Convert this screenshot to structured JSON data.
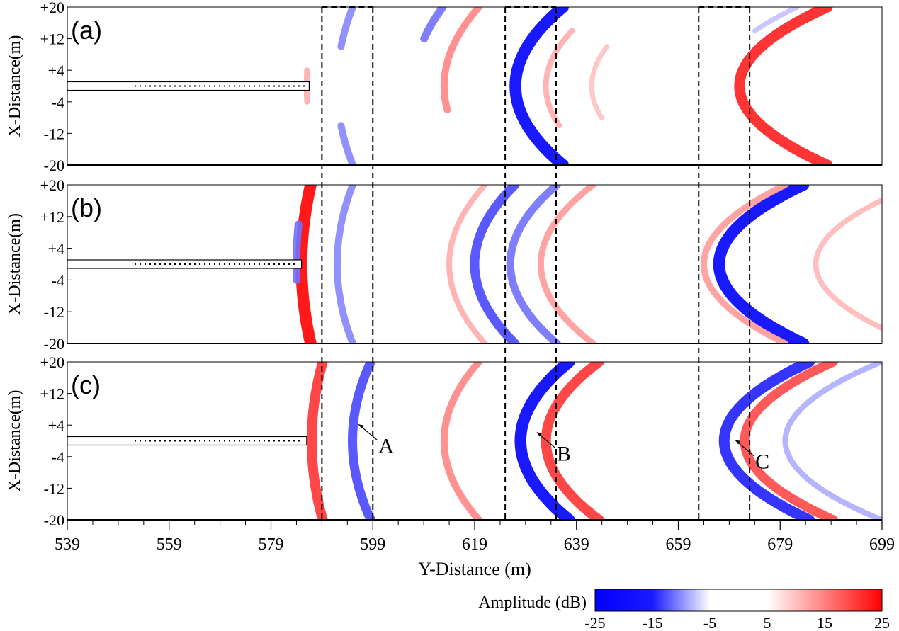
{
  "chart_data": {
    "type": "heatmap",
    "title": "",
    "xlabel": "Y-Distance (m)",
    "ylabel": "X-Distance(m)",
    "xlim": [
      539,
      699
    ],
    "ylim": [
      -20,
      20
    ],
    "x_ticks": [
      539,
      559,
      579,
      599,
      619,
      639,
      659,
      679,
      699
    ],
    "x_tick_labels": [
      "539",
      "559",
      "579",
      "599",
      "619",
      "639",
      "659",
      "679",
      "699"
    ],
    "y_ticks": [
      20,
      12,
      4,
      -4,
      -12,
      -20
    ],
    "y_tick_labels": [
      "+20",
      "+12",
      "+4",
      "-4",
      "-12",
      "-20"
    ],
    "colorbar": {
      "label": "Amplitude (dB)",
      "range": [
        -25,
        25
      ],
      "ticks": [
        "-25",
        "-15",
        "-5",
        "5",
        "15",
        "25"
      ],
      "low_color": "#0000ff",
      "mid_color": "#ffffff",
      "high_color": "#ff0000"
    },
    "dashed_regions": [
      {
        "x": [
          589,
          599
        ]
      },
      {
        "x": [
          625,
          635
        ]
      },
      {
        "x": [
          663,
          673
        ]
      }
    ],
    "panels": [
      {
        "label": "(a)",
        "borehole": {
          "x_end": 586.5,
          "y": 0
        },
        "arcs": [
          {
            "y0": 592,
            "amp": -12,
            "x_range": [
              10,
              20
            ]
          },
          {
            "y0": 592,
            "amp": -12,
            "x_range": [
              -20,
              -10
            ]
          },
          {
            "y0": 586,
            "amp": 8,
            "x_range": [
              -4,
              4
            ]
          },
          {
            "y0": 607,
            "amp": -14,
            "x_range": [
              12,
              20
            ]
          },
          {
            "y0": 613,
            "amp": 12,
            "x_range": [
              -6,
              20
            ]
          },
          {
            "y0": 627,
            "amp": -25,
            "x_range": [
              -20,
              20
            ]
          },
          {
            "y0": 633,
            "amp": 8,
            "x_range": [
              -10,
              14
            ]
          },
          {
            "y0": 642,
            "amp": 6,
            "x_range": [
              -8,
              10
            ]
          },
          {
            "y0": 671,
            "amp": 22,
            "x_range": [
              -20,
              20
            ]
          },
          {
            "y0": 666,
            "amp": -6,
            "x_range": [
              14,
              20
            ]
          }
        ]
      },
      {
        "label": "(b)",
        "borehole": {
          "x_end": 585,
          "y": 0
        },
        "arcs": [
          {
            "y0": 585,
            "amp": 25,
            "x_range": [
              -20,
              20
            ]
          },
          {
            "y0": 584,
            "amp": -14,
            "x_range": [
              -4,
              10
            ]
          },
          {
            "y0": 592,
            "amp": -12,
            "x_range": [
              -20,
              20
            ]
          },
          {
            "y0": 619,
            "amp": -18,
            "x_range": [
              -20,
              20
            ]
          },
          {
            "y0": 614,
            "amp": 8,
            "x_range": [
              -20,
              20
            ]
          },
          {
            "y0": 626,
            "amp": -14,
            "x_range": [
              -20,
              20
            ]
          },
          {
            "y0": 632,
            "amp": 10,
            "x_range": [
              -20,
              20
            ]
          },
          {
            "y0": 667,
            "amp": -25,
            "x_range": [
              -20,
              20
            ]
          },
          {
            "y0": 664,
            "amp": 10,
            "x_range": [
              -20,
              20
            ]
          },
          {
            "y0": 686,
            "amp": 7,
            "x_range": [
              -20,
              20
            ]
          }
        ]
      },
      {
        "label": "(c)",
        "borehole": {
          "x_end": 586,
          "y": 0
        },
        "arcs": [
          {
            "y0": 587,
            "amp": 20,
            "x_range": [
              -20,
              20
            ]
          },
          {
            "y0": 595,
            "amp": -18,
            "x_range": [
              -20,
              20
            ]
          },
          {
            "y0": 613,
            "amp": 12,
            "x_range": [
              -20,
              20
            ]
          },
          {
            "y0": 628,
            "amp": -25,
            "x_range": [
              -20,
              20
            ]
          },
          {
            "y0": 633,
            "amp": 20,
            "x_range": [
              -20,
              20
            ]
          },
          {
            "y0": 668,
            "amp": -22,
            "x_range": [
              -20,
              20
            ]
          },
          {
            "y0": 672,
            "amp": 18,
            "x_range": [
              -20,
              20
            ]
          },
          {
            "y0": 680,
            "amp": -8,
            "x_range": [
              -20,
              20
            ]
          }
        ]
      }
    ],
    "annotations": [
      {
        "text": "A",
        "x": 599,
        "y": 2
      },
      {
        "text": "B",
        "x": 634,
        "y": 0
      },
      {
        "text": "C",
        "x": 673,
        "y": -2
      }
    ]
  }
}
